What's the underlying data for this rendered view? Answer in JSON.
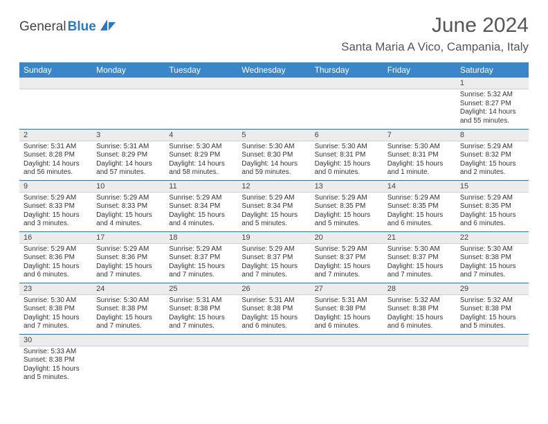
{
  "brand": {
    "name1": "General",
    "name2": "Blue"
  },
  "title": "June 2024",
  "location": "Santa Maria A Vico, Campania, Italy",
  "colors": {
    "header_bg": "#3b86c8",
    "header_text": "#ffffff",
    "row_divider": "#2f6ea8",
    "daynum_bg": "#ececec",
    "text": "#333333",
    "title_color": "#555555"
  },
  "day_labels": [
    "Sunday",
    "Monday",
    "Tuesday",
    "Wednesday",
    "Thursday",
    "Friday",
    "Saturday"
  ],
  "weeks": [
    [
      null,
      null,
      null,
      null,
      null,
      null,
      {
        "n": "1",
        "sr": "5:32 AM",
        "ss": "8:27 PM",
        "dl": "14 hours and 55 minutes."
      }
    ],
    [
      {
        "n": "2",
        "sr": "5:31 AM",
        "ss": "8:28 PM",
        "dl": "14 hours and 56 minutes."
      },
      {
        "n": "3",
        "sr": "5:31 AM",
        "ss": "8:29 PM",
        "dl": "14 hours and 57 minutes."
      },
      {
        "n": "4",
        "sr": "5:30 AM",
        "ss": "8:29 PM",
        "dl": "14 hours and 58 minutes."
      },
      {
        "n": "5",
        "sr": "5:30 AM",
        "ss": "8:30 PM",
        "dl": "14 hours and 59 minutes."
      },
      {
        "n": "6",
        "sr": "5:30 AM",
        "ss": "8:31 PM",
        "dl": "15 hours and 0 minutes."
      },
      {
        "n": "7",
        "sr": "5:30 AM",
        "ss": "8:31 PM",
        "dl": "15 hours and 1 minute."
      },
      {
        "n": "8",
        "sr": "5:29 AM",
        "ss": "8:32 PM",
        "dl": "15 hours and 2 minutes."
      }
    ],
    [
      {
        "n": "9",
        "sr": "5:29 AM",
        "ss": "8:33 PM",
        "dl": "15 hours and 3 minutes."
      },
      {
        "n": "10",
        "sr": "5:29 AM",
        "ss": "8:33 PM",
        "dl": "15 hours and 4 minutes."
      },
      {
        "n": "11",
        "sr": "5:29 AM",
        "ss": "8:34 PM",
        "dl": "15 hours and 4 minutes."
      },
      {
        "n": "12",
        "sr": "5:29 AM",
        "ss": "8:34 PM",
        "dl": "15 hours and 5 minutes."
      },
      {
        "n": "13",
        "sr": "5:29 AM",
        "ss": "8:35 PM",
        "dl": "15 hours and 5 minutes."
      },
      {
        "n": "14",
        "sr": "5:29 AM",
        "ss": "8:35 PM",
        "dl": "15 hours and 6 minutes."
      },
      {
        "n": "15",
        "sr": "5:29 AM",
        "ss": "8:35 PM",
        "dl": "15 hours and 6 minutes."
      }
    ],
    [
      {
        "n": "16",
        "sr": "5:29 AM",
        "ss": "8:36 PM",
        "dl": "15 hours and 6 minutes."
      },
      {
        "n": "17",
        "sr": "5:29 AM",
        "ss": "8:36 PM",
        "dl": "15 hours and 7 minutes."
      },
      {
        "n": "18",
        "sr": "5:29 AM",
        "ss": "8:37 PM",
        "dl": "15 hours and 7 minutes."
      },
      {
        "n": "19",
        "sr": "5:29 AM",
        "ss": "8:37 PM",
        "dl": "15 hours and 7 minutes."
      },
      {
        "n": "20",
        "sr": "5:29 AM",
        "ss": "8:37 PM",
        "dl": "15 hours and 7 minutes."
      },
      {
        "n": "21",
        "sr": "5:30 AM",
        "ss": "8:37 PM",
        "dl": "15 hours and 7 minutes."
      },
      {
        "n": "22",
        "sr": "5:30 AM",
        "ss": "8:38 PM",
        "dl": "15 hours and 7 minutes."
      }
    ],
    [
      {
        "n": "23",
        "sr": "5:30 AM",
        "ss": "8:38 PM",
        "dl": "15 hours and 7 minutes."
      },
      {
        "n": "24",
        "sr": "5:30 AM",
        "ss": "8:38 PM",
        "dl": "15 hours and 7 minutes."
      },
      {
        "n": "25",
        "sr": "5:31 AM",
        "ss": "8:38 PM",
        "dl": "15 hours and 7 minutes."
      },
      {
        "n": "26",
        "sr": "5:31 AM",
        "ss": "8:38 PM",
        "dl": "15 hours and 6 minutes."
      },
      {
        "n": "27",
        "sr": "5:31 AM",
        "ss": "8:38 PM",
        "dl": "15 hours and 6 minutes."
      },
      {
        "n": "28",
        "sr": "5:32 AM",
        "ss": "8:38 PM",
        "dl": "15 hours and 6 minutes."
      },
      {
        "n": "29",
        "sr": "5:32 AM",
        "ss": "8:38 PM",
        "dl": "15 hours and 5 minutes."
      }
    ],
    [
      {
        "n": "30",
        "sr": "5:33 AM",
        "ss": "8:38 PM",
        "dl": "15 hours and 5 minutes."
      },
      null,
      null,
      null,
      null,
      null,
      null
    ]
  ],
  "labels": {
    "sunrise": "Sunrise: ",
    "sunset": "Sunset: ",
    "daylight": "Daylight: "
  }
}
